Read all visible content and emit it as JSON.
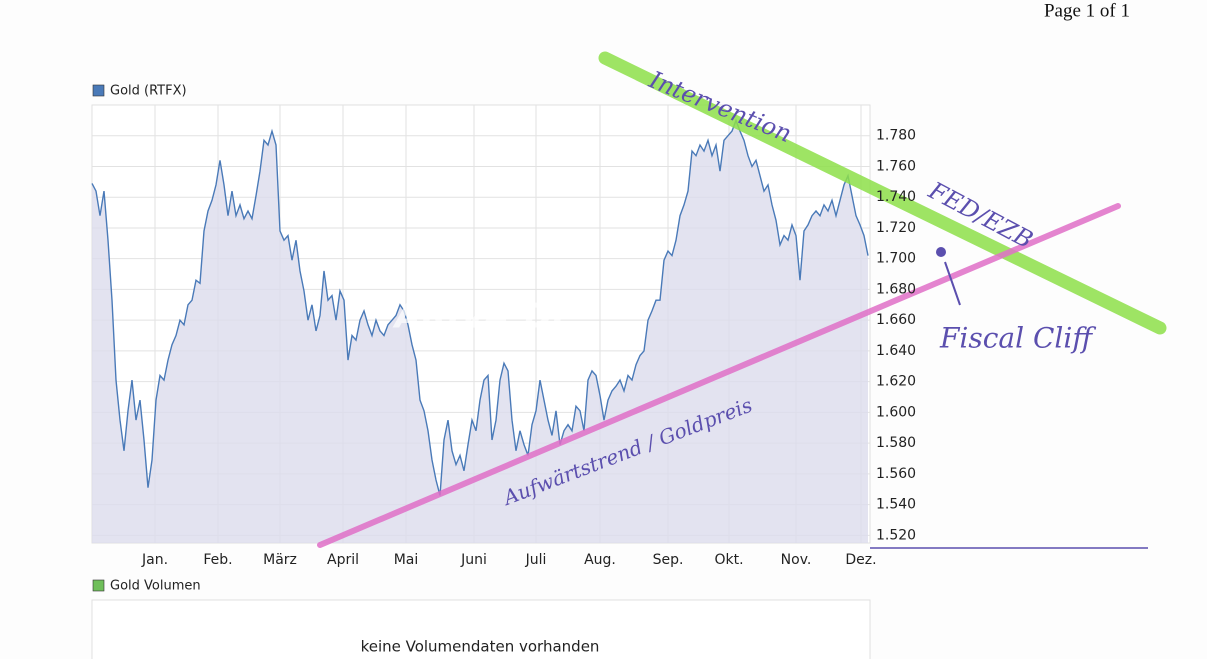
{
  "page_header": "Page 1 of 1",
  "chart_data": {
    "type": "line",
    "legend_label": "Gold (RTFX)",
    "watermark": "ARIVA.DE",
    "series": [
      {
        "name": "Gold (RTFX)",
        "color": "#4a7ab8",
        "fill": "#dcdcec",
        "values": [
          1749,
          1744,
          1728,
          1744,
          1712,
          1673,
          1621,
          1595,
          1575,
          1601,
          1621,
          1595,
          1608,
          1582,
          1551,
          1569,
          1608,
          1624,
          1621,
          1634,
          1644,
          1650,
          1660,
          1657,
          1670,
          1673,
          1686,
          1684,
          1718,
          1731,
          1738,
          1748,
          1764,
          1748,
          1728,
          1744,
          1728,
          1735,
          1726,
          1731,
          1726,
          1741,
          1757,
          1777,
          1774,
          1783,
          1774,
          1718,
          1712,
          1715,
          1699,
          1712,
          1692,
          1679,
          1660,
          1670,
          1653,
          1663,
          1692,
          1673,
          1676,
          1660,
          1679,
          1673,
          1634,
          1650,
          1647,
          1660,
          1666,
          1657,
          1650,
          1660,
          1653,
          1650,
          1657,
          1660,
          1663,
          1670,
          1666,
          1657,
          1644,
          1634,
          1608,
          1601,
          1588,
          1569,
          1556,
          1546,
          1582,
          1595,
          1575,
          1566,
          1572,
          1562,
          1579,
          1595,
          1588,
          1608,
          1621,
          1624,
          1582,
          1595,
          1621,
          1632,
          1627,
          1595,
          1575,
          1588,
          1579,
          1572,
          1592,
          1601,
          1621,
          1608,
          1595,
          1585,
          1601,
          1579,
          1588,
          1592,
          1588,
          1604,
          1601,
          1588,
          1621,
          1627,
          1624,
          1611,
          1595,
          1608,
          1614,
          1617,
          1621,
          1614,
          1624,
          1621,
          1631,
          1637,
          1640,
          1660,
          1666,
          1673,
          1673,
          1699,
          1705,
          1702,
          1712,
          1728,
          1735,
          1744,
          1770,
          1767,
          1774,
          1770,
          1777,
          1767,
          1774,
          1757,
          1777,
          1780,
          1783,
          1790,
          1783,
          1777,
          1767,
          1760,
          1764,
          1754,
          1744,
          1748,
          1735,
          1725,
          1709,
          1715,
          1712,
          1722,
          1715,
          1686,
          1718,
          1722,
          1728,
          1731,
          1728,
          1735,
          1731,
          1738,
          1728,
          1738,
          1748,
          1754,
          1741,
          1728,
          1722,
          1715,
          1702
        ]
      }
    ],
    "xlim": [
      0,
      194.5
    ],
    "xticks": [
      {
        "value": 15.75,
        "label": "Jan."
      },
      {
        "value": 31.5,
        "label": "Feb."
      },
      {
        "value": 47,
        "label": "März"
      },
      {
        "value": 62.75,
        "label": "April"
      },
      {
        "value": 78.5,
        "label": "Mai"
      },
      {
        "value": 95.5,
        "label": "Juni"
      },
      {
        "value": 111,
        "label": "Juli"
      },
      {
        "value": 127,
        "label": "Aug."
      },
      {
        "value": 144,
        "label": "Sep."
      },
      {
        "value": 159.25,
        "label": "Okt."
      },
      {
        "value": 176,
        "label": "Nov."
      },
      {
        "value": 192.25,
        "label": "Dez."
      }
    ],
    "ylim": [
      1515,
      1800
    ],
    "yticks": [
      {
        "value": 1520,
        "label": "1.520"
      },
      {
        "value": 1540,
        "label": "1.540"
      },
      {
        "value": 1560,
        "label": "1.560"
      },
      {
        "value": 1580,
        "label": "1.580"
      },
      {
        "value": 1600,
        "label": "1.600"
      },
      {
        "value": 1620,
        "label": "1.620"
      },
      {
        "value": 1640,
        "label": "1.640"
      },
      {
        "value": 1660,
        "label": "1.660"
      },
      {
        "value": 1680,
        "label": "1.680"
      },
      {
        "value": 1700,
        "label": "1.700"
      },
      {
        "value": 1720,
        "label": "1.720"
      },
      {
        "value": 1740,
        "label": "1.740"
      },
      {
        "value": 1760,
        "label": "1.760"
      },
      {
        "value": 1780,
        "label": "1.780"
      }
    ],
    "grid": true,
    "annotations": [
      "Intervention",
      "FED/EZB",
      "Fiscal Cliff",
      "Aufwärtstrend / Goldpreis"
    ]
  },
  "volume_panel": {
    "legend_label": "Gold Volumen",
    "message": "keine Volumendaten vorhanden"
  }
}
